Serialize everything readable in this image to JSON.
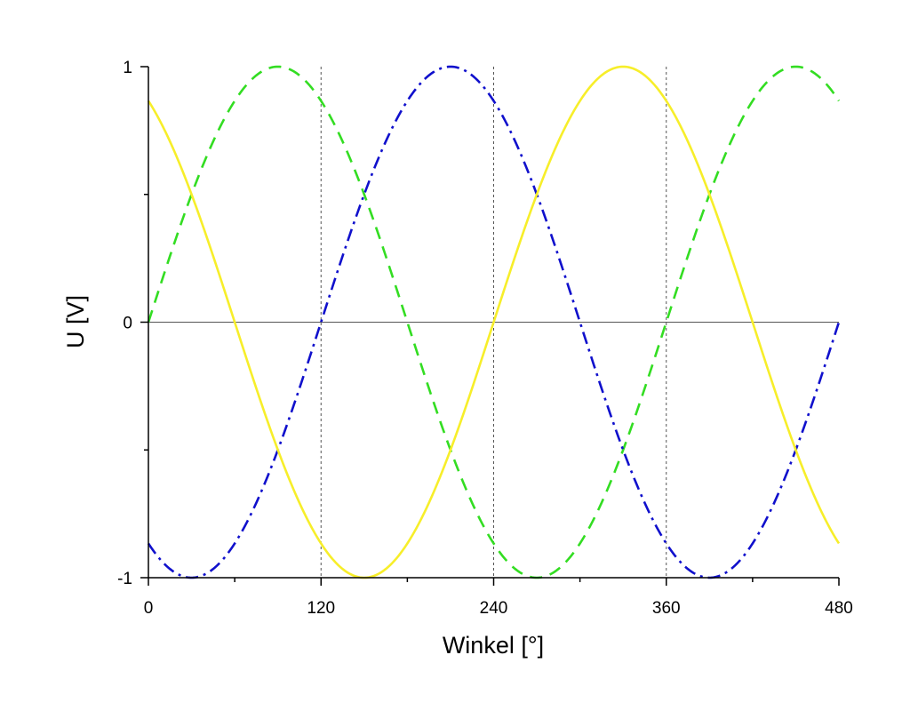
{
  "chart_data": {
    "type": "line",
    "title": "",
    "xlabel": "Winkel [°]",
    "ylabel": "U [V]",
    "xlim": [
      0,
      480
    ],
    "ylim": [
      -1,
      1
    ],
    "x_ticks": [
      0,
      120,
      240,
      360,
      480
    ],
    "x_tick_labels": [
      "0",
      "120",
      "240",
      "360",
      "480"
    ],
    "y_ticks": [
      -1,
      0,
      1
    ],
    "y_tick_labels": [
      "-1",
      "0",
      "1"
    ],
    "grid": false,
    "reference_lines": {
      "horizontal_at": [
        0
      ],
      "vertical_dotted_at": [
        120,
        240,
        360
      ]
    },
    "legend": "none",
    "series": [
      {
        "function": "sin(x)",
        "phase_deg": 0,
        "color": "#33dd22",
        "line_style": "dashed",
        "x": [
          0,
          30,
          60,
          90,
          120,
          150,
          180,
          210,
          240,
          270,
          300,
          330,
          360,
          390,
          420,
          450,
          480
        ],
        "values": [
          0,
          0.5,
          0.866,
          1,
          0.866,
          0.5,
          0,
          -0.5,
          -0.866,
          -1,
          -0.866,
          -0.5,
          0,
          0.5,
          0.866,
          1,
          0.866
        ]
      },
      {
        "function": "sin(x - 120°)",
        "phase_deg": -120,
        "color": "#1010cc",
        "line_style": "dash-dot",
        "x": [
          0,
          30,
          60,
          90,
          120,
          150,
          180,
          210,
          240,
          270,
          300,
          330,
          360,
          390,
          420,
          450,
          480
        ],
        "values": [
          -0.866,
          -1,
          -0.866,
          -0.5,
          0,
          0.5,
          0.866,
          1,
          0.866,
          0.5,
          0,
          -0.5,
          -0.866,
          -1,
          -0.866,
          -0.5,
          0
        ]
      },
      {
        "function": "sin(x + 120°)",
        "phase_deg": 120,
        "color": "#f7ee2a",
        "line_style": "solid",
        "x": [
          0,
          30,
          60,
          90,
          120,
          150,
          180,
          210,
          240,
          270,
          300,
          330,
          360,
          390,
          420,
          450,
          480
        ],
        "values": [
          0.866,
          0.5,
          0,
          -0.5,
          -0.866,
          -1,
          -0.866,
          -0.5,
          0,
          0.5,
          0.866,
          1,
          0.866,
          0.5,
          0,
          -0.5,
          -0.866
        ]
      }
    ]
  }
}
